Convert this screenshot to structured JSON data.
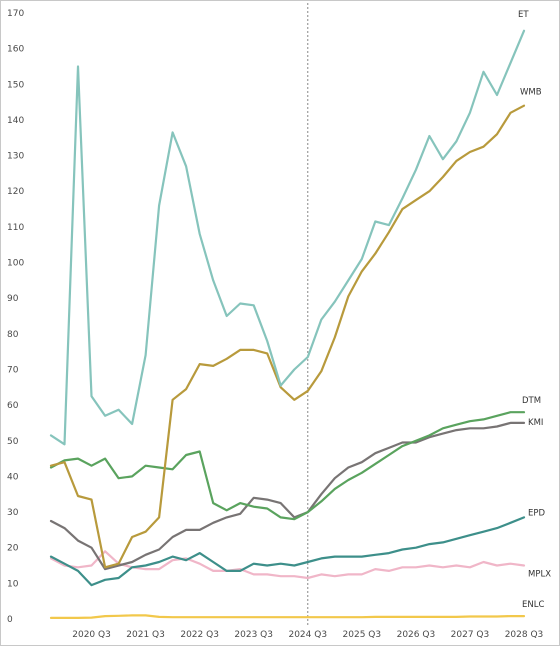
{
  "chart_data": {
    "type": "line",
    "title": "",
    "xlabel": "",
    "ylabel": "",
    "ylim": [
      0,
      170
    ],
    "y_ticks": [
      0,
      10,
      20,
      30,
      40,
      50,
      60,
      70,
      80,
      90,
      100,
      110,
      120,
      130,
      140,
      150,
      160,
      170
    ],
    "x_tick_labels": [
      "2020 Q3",
      "2021 Q3",
      "2022 Q3",
      "2023 Q3",
      "2024 Q3",
      "2025 Q3",
      "2026 Q3",
      "2027 Q3",
      "2028 Q3"
    ],
    "x_range": [
      "2019 Q4",
      "2028 Q4"
    ],
    "reference_line_at": "2024 Q3",
    "grid": false,
    "legend": "series labels at line ends (right)",
    "series": [
      {
        "name": "ET",
        "color": "#86c4bc",
        "values": [
          51.5,
          49.0,
          155.0,
          62.5,
          57.0,
          58.7,
          54.7,
          74.0,
          116.0,
          136.5,
          127.0,
          108.0,
          95.0,
          85.0,
          88.5,
          88.0,
          78.0,
          65.5,
          70.0,
          73.5,
          84.0,
          89.0,
          95.0,
          101.0,
          111.5,
          110.5,
          118.0,
          126.0,
          135.5,
          129.0,
          134.0,
          142.0,
          153.5,
          147.0,
          156.0,
          165.0
        ]
      },
      {
        "name": "WMB",
        "color": "#b89a3c",
        "values": [
          43.0,
          44.0,
          34.5,
          33.5,
          14.5,
          15.5,
          23.0,
          24.5,
          28.5,
          61.5,
          64.5,
          71.5,
          71.0,
          73.0,
          75.5,
          75.5,
          74.5,
          65.0,
          61.5,
          64.0,
          69.5,
          79.0,
          90.5,
          97.5,
          102.5,
          108.5,
          115.0,
          117.5,
          120.0,
          124.0,
          128.5,
          131.0,
          132.5,
          136.0,
          142.0,
          144.0
        ]
      },
      {
        "name": "DTM",
        "color": "#5aa35e",
        "values": [
          42.5,
          44.5,
          45.0,
          43.0,
          45.0,
          39.5,
          40.0,
          43.0,
          42.5,
          42.0,
          46.0,
          47.0,
          32.5,
          30.5,
          32.5,
          31.5,
          31.0,
          28.5,
          28.0,
          30.0,
          33.0,
          36.5,
          39.0,
          41.0,
          43.5,
          46.0,
          48.5,
          50.0,
          51.5,
          53.5,
          54.5,
          55.5,
          56.0,
          57.0,
          58.0,
          58.0
        ]
      },
      {
        "name": "KMI",
        "color": "#787474",
        "values": [
          27.5,
          25.5,
          22.0,
          20.0,
          14.0,
          15.0,
          16.0,
          18.0,
          19.5,
          23.0,
          25.0,
          25.0,
          27.0,
          28.5,
          29.5,
          34.0,
          33.5,
          32.5,
          28.5,
          30.0,
          35.0,
          39.5,
          42.5,
          44.0,
          46.5,
          48.0,
          49.5,
          49.5,
          51.0,
          52.0,
          53.0,
          53.5,
          53.5,
          54.0,
          55.0,
          55.0
        ]
      },
      {
        "name": "EPD",
        "color": "#3d8f8a",
        "values": [
          17.5,
          15.5,
          13.5,
          9.5,
          11.0,
          11.5,
          14.5,
          15.0,
          16.0,
          17.5,
          16.5,
          18.5,
          16.0,
          13.5,
          13.5,
          15.5,
          15.0,
          15.5,
          15.0,
          16.0,
          17.0,
          17.5,
          17.5,
          17.5,
          18.0,
          18.5,
          19.5,
          20.0,
          21.0,
          21.5,
          22.5,
          23.5,
          24.5,
          25.5,
          27.0,
          28.5
        ]
      },
      {
        "name": "MPLX",
        "color": "#f0b6c8",
        "values": [
          17.0,
          15.0,
          14.5,
          15.0,
          19.0,
          15.5,
          14.5,
          14.0,
          14.0,
          16.5,
          17.0,
          15.5,
          13.5,
          13.5,
          14.0,
          12.5,
          12.5,
          12.0,
          12.0,
          11.5,
          12.5,
          12.0,
          12.5,
          12.5,
          14.0,
          13.5,
          14.5,
          14.5,
          15.0,
          14.5,
          15.0,
          14.5,
          16.0,
          15.0,
          15.5,
          15.0
        ]
      },
      {
        "name": "ENLC",
        "color": "#f2c84b",
        "values": [
          0.3,
          0.3,
          0.3,
          0.4,
          0.8,
          0.9,
          1.0,
          1.0,
          0.6,
          0.5,
          0.5,
          0.5,
          0.5,
          0.5,
          0.5,
          0.5,
          0.5,
          0.5,
          0.5,
          0.5,
          0.5,
          0.5,
          0.5,
          0.5,
          0.6,
          0.6,
          0.6,
          0.6,
          0.6,
          0.6,
          0.6,
          0.7,
          0.7,
          0.7,
          0.8,
          0.8
        ]
      }
    ]
  }
}
